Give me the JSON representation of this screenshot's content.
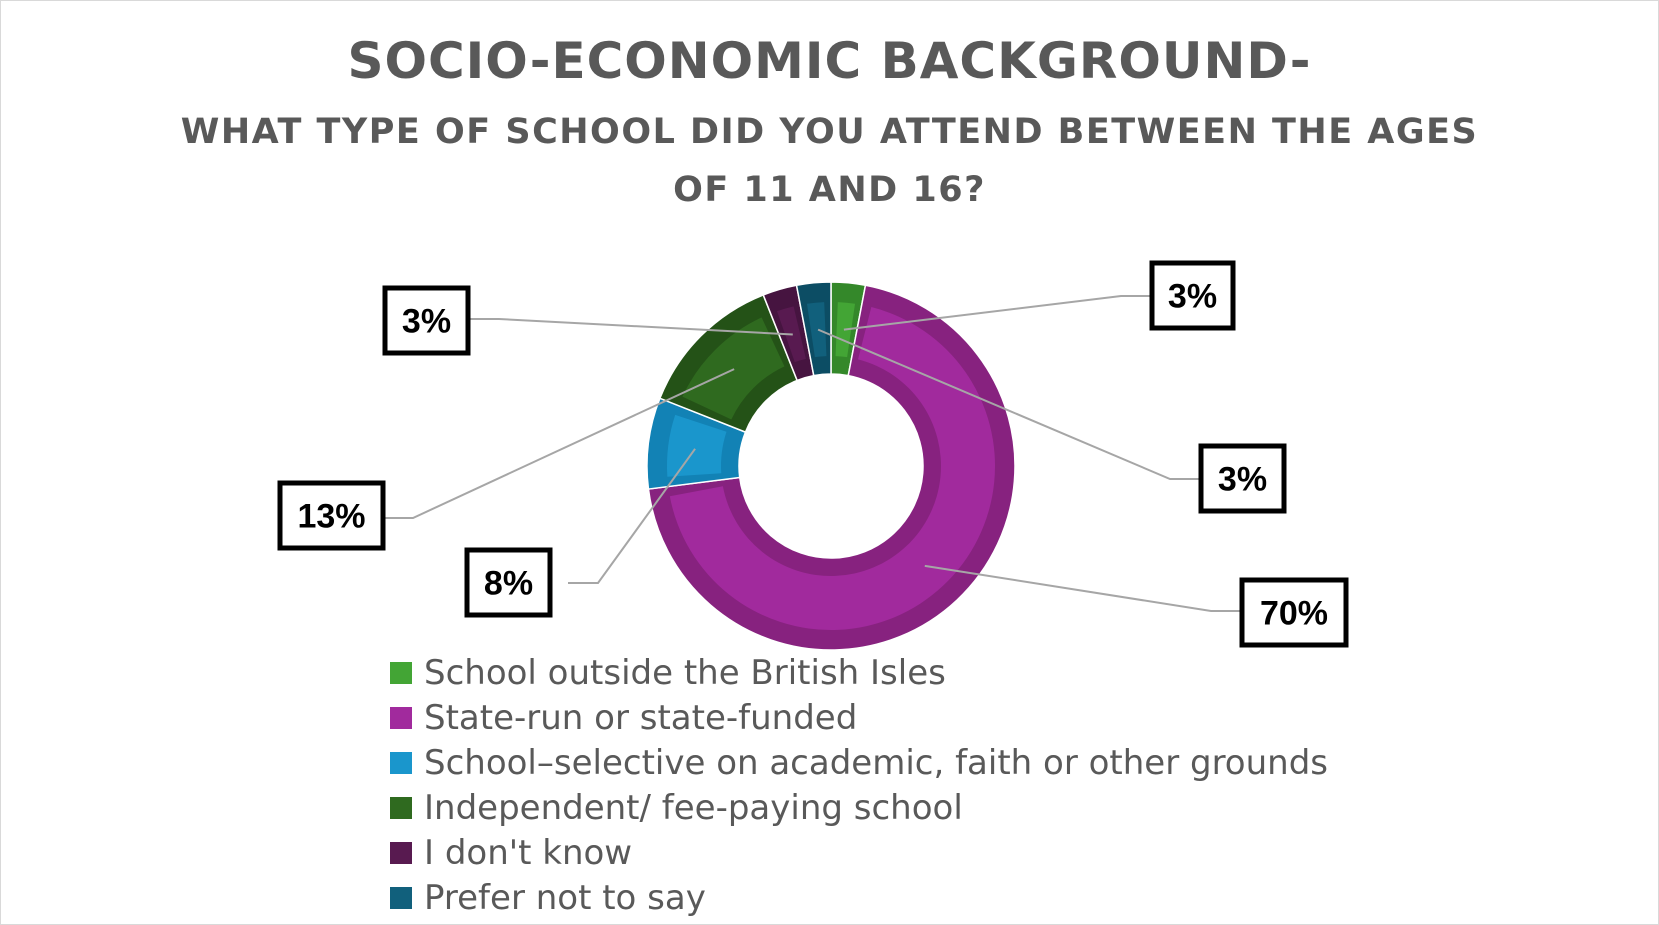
{
  "title": "SOCIO-ECONOMIC BACKGROUND-",
  "subtitle_line1": "WHAT TYPE OF SCHOOL DID YOU ATTEND BETWEEN THE AGES",
  "subtitle_line2": "OF 11 AND 16?",
  "chart_data": {
    "type": "pie",
    "variant": "doughnut",
    "legend_position": "bottom",
    "series": [
      {
        "name": "School outside the British Isles",
        "value": 3,
        "label": "3%",
        "color": "#43a535",
        "dark": "#34882a"
      },
      {
        "name": "State-run or state-funded",
        "value": 70,
        "label": "70%",
        "color": "#a12a9d",
        "dark": "#87227f"
      },
      {
        "name": "School–selective on academic, faith or other grounds",
        "value": 8,
        "label": "8%",
        "color": "#1a96cc",
        "dark": "#1282b5"
      },
      {
        "name": "Independent/ fee-paying school",
        "value": 13,
        "label": "13%",
        "color": "#2f6a1f",
        "dark": "#245217"
      },
      {
        "name": "I don't know",
        "value": 3,
        "label": "3%",
        "color": "#581a50",
        "dark": "#461440"
      },
      {
        "name": "Prefer not to say",
        "value": 3,
        "label": "3%",
        "color": "#11607c",
        "dark": "#0c4d64"
      }
    ]
  }
}
